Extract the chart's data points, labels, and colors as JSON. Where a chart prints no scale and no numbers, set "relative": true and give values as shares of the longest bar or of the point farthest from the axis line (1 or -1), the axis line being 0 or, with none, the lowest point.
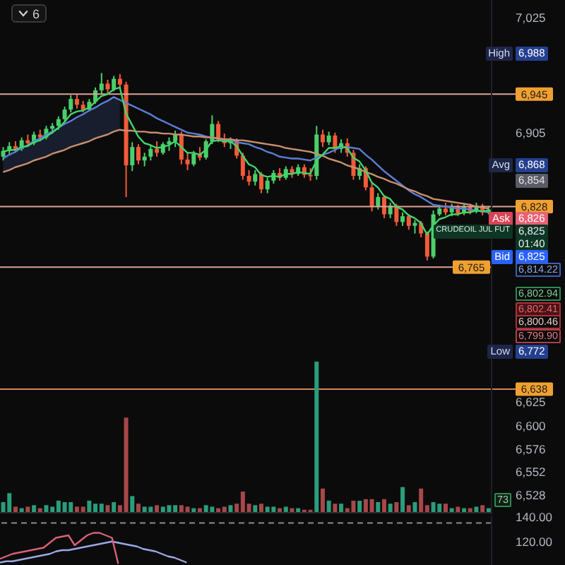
{
  "chart_data": [
    {
      "type": "candlestick",
      "categories": [
        null,
        null,
        null,
        null,
        null,
        null,
        null,
        null,
        null,
        null,
        null,
        null,
        null,
        null,
        null,
        null,
        null,
        null,
        null,
        null,
        null,
        null,
        null,
        null,
        null,
        null,
        null,
        null,
        null,
        null,
        null,
        null,
        null,
        null,
        null,
        null,
        null,
        null,
        null,
        null,
        null,
        null,
        null,
        null,
        null,
        null,
        null,
        null,
        null,
        null,
        null,
        null,
        null,
        null,
        null,
        null,
        null,
        null,
        null,
        null,
        null,
        null,
        null,
        null,
        null,
        null,
        null,
        null,
        null,
        null,
        null,
        null,
        null,
        null,
        null,
        null,
        null,
        null,
        null,
        null
      ],
      "ohlc": [
        [
          6880,
          6890,
          6876,
          6886
        ],
        [
          6886,
          6895,
          6882,
          6891
        ],
        [
          6891,
          6896,
          6884,
          6888
        ],
        [
          6888,
          6900,
          6886,
          6897
        ],
        [
          6897,
          6903,
          6890,
          6894
        ],
        [
          6894,
          6906,
          6892,
          6903
        ],
        [
          6903,
          6908,
          6896,
          6900
        ],
        [
          6900,
          6912,
          6898,
          6909
        ],
        [
          6909,
          6915,
          6904,
          6912
        ],
        [
          6912,
          6922,
          6908,
          6919
        ],
        [
          6919,
          6932,
          6916,
          6929
        ],
        [
          6929,
          6944,
          6926,
          6940
        ],
        [
          6940,
          6945,
          6930,
          6934
        ],
        [
          6934,
          6938,
          6926,
          6929
        ],
        [
          6929,
          6940,
          6927,
          6937
        ],
        [
          6937,
          6952,
          6935,
          6949
        ],
        [
          6949,
          6967,
          6945,
          6956
        ],
        [
          6956,
          6960,
          6946,
          6950
        ],
        [
          6950,
          6964,
          6948,
          6961
        ],
        [
          6961,
          6966,
          6950,
          6955
        ],
        [
          6955,
          6958,
          6838,
          6871
        ],
        [
          6871,
          6895,
          6865,
          6890
        ],
        [
          6890,
          6893,
          6872,
          6876
        ],
        [
          6876,
          6884,
          6870,
          6880
        ],
        [
          6880,
          6892,
          6876,
          6888
        ],
        [
          6888,
          6896,
          6880,
          6884
        ],
        [
          6884,
          6895,
          6882,
          6893
        ],
        [
          6893,
          6900,
          6886,
          6896
        ],
        [
          6896,
          6907,
          6890,
          6903
        ],
        [
          6903,
          6906,
          6872,
          6877
        ],
        [
          6877,
          6884,
          6866,
          6872
        ],
        [
          6872,
          6886,
          6870,
          6883
        ],
        [
          6883,
          6890,
          6876,
          6879
        ],
        [
          6879,
          6898,
          6877,
          6896
        ],
        [
          6896,
          6923,
          6893,
          6914
        ],
        [
          6914,
          6917,
          6895,
          6898
        ],
        [
          6898,
          6904,
          6890,
          6894
        ],
        [
          6894,
          6900,
          6888,
          6897
        ],
        [
          6897,
          6899,
          6878,
          6881
        ],
        [
          6881,
          6884,
          6856,
          6860
        ],
        [
          6860,
          6866,
          6850,
          6854
        ],
        [
          6854,
          6866,
          6850,
          6862
        ],
        [
          6862,
          6864,
          6842,
          6846
        ],
        [
          6846,
          6858,
          6842,
          6855
        ],
        [
          6855,
          6866,
          6852,
          6863
        ],
        [
          6863,
          6868,
          6855,
          6858
        ],
        [
          6858,
          6870,
          6856,
          6867
        ],
        [
          6867,
          6870,
          6858,
          6862
        ],
        [
          6862,
          6872,
          6860,
          6869
        ],
        [
          6869,
          6872,
          6858,
          6861
        ],
        [
          6861,
          6868,
          6855,
          6860
        ],
        [
          6860,
          6912,
          6856,
          6903
        ],
        [
          6903,
          6908,
          6890,
          6895
        ],
        [
          6895,
          6906,
          6892,
          6902
        ],
        [
          6902,
          6905,
          6884,
          6888
        ],
        [
          6888,
          6898,
          6884,
          6894
        ],
        [
          6894,
          6899,
          6880,
          6884
        ],
        [
          6884,
          6887,
          6856,
          6860
        ],
        [
          6860,
          6872,
          6856,
          6868
        ],
        [
          6868,
          6870,
          6845,
          6848
        ],
        [
          6848,
          6852,
          6823,
          6828
        ],
        [
          6828,
          6842,
          6825,
          6838
        ],
        [
          6838,
          6840,
          6816,
          6820
        ],
        [
          6820,
          6832,
          6816,
          6829
        ],
        [
          6829,
          6831,
          6808,
          6812
        ],
        [
          6812,
          6822,
          6808,
          6818
        ],
        [
          6818,
          6820,
          6804,
          6808
        ],
        [
          6808,
          6814,
          6800,
          6811
        ],
        [
          6811,
          6813,
          6796,
          6800
        ],
        [
          6800,
          6802,
          6772,
          6776
        ],
        [
          6776,
          6824,
          6774,
          6820
        ],
        [
          6820,
          6830,
          6818,
          6826
        ],
        [
          6826,
          6832,
          6819,
          6822
        ],
        [
          6822,
          6831,
          6818,
          6828
        ],
        [
          6828,
          6830,
          6818,
          6821
        ],
        [
          6821,
          6830,
          6819,
          6828
        ],
        [
          6828,
          6831,
          6820,
          6823
        ],
        [
          6823,
          6832,
          6821,
          6829
        ],
        [
          6829,
          6831,
          6819,
          6822
        ],
        [
          6822,
          6828,
          6820,
          6825
        ]
      ],
      "colors": [
        "#4ccf6a",
        "#4ccf6a",
        "#f25b3a",
        "#4ccf6a",
        "#f25b3a",
        "#4ccf6a",
        "#f25b3a",
        "#4ccf6a",
        "#4ccf6a",
        "#4ccf6a",
        "#4ccf6a",
        "#4ccf6a",
        "#f25b3a",
        "#f25b3a",
        "#4ccf6a",
        "#4ccf6a",
        "#4ccf6a",
        "#f25b3a",
        "#4ccf6a",
        "#f25b3a",
        "#f25b3a",
        "#4ccf6a",
        "#f25b3a",
        "#4ccf6a",
        "#4ccf6a",
        "#f25b3a",
        "#4ccf6a",
        "#4ccf6a",
        "#4ccf6a",
        "#f25b3a",
        "#f25b3a",
        "#4ccf6a",
        "#f25b3a",
        "#4ccf6a",
        "#4ccf6a",
        "#f25b3a",
        "#f25b3a",
        "#4ccf6a",
        "#f25b3a",
        "#f25b3a",
        "#f25b3a",
        "#4ccf6a",
        "#f25b3a",
        "#4ccf6a",
        "#4ccf6a",
        "#f25b3a",
        "#4ccf6a",
        "#f25b3a",
        "#4ccf6a",
        "#f25b3a",
        "#f25b3a",
        "#4ccf6a",
        "#f25b3a",
        "#4ccf6a",
        "#f25b3a",
        "#4ccf6a",
        "#f25b3a",
        "#f25b3a",
        "#4ccf6a",
        "#f25b3a",
        "#f25b3a",
        "#4ccf6a",
        "#f25b3a",
        "#4ccf6a",
        "#f25b3a",
        "#4ccf6a",
        "#f25b3a",
        "#4ccf6a",
        "#f25b3a",
        "#f25b3a",
        "#4ccf6a",
        "#4ccf6a",
        "#f25b3a",
        "#4ccf6a",
        "#f25b3a",
        "#4ccf6a",
        "#f25b3a",
        "#4ccf6a",
        "#f25b3a",
        "#4ccf6a"
      ],
      "series": [
        {
          "type": "line",
          "color": "#5b7fd6",
          "values": [
            6878,
            6882,
            6885,
            6889,
            6892,
            6896,
            6899,
            6903,
            6906,
            6910,
            6914,
            6917,
            6921,
            6924,
            6928,
            6931,
            6935,
            6938,
            6942,
            6939,
            6936,
            6933,
            6930,
            6927,
            6924,
            6920,
            6917,
            6914,
            6911,
            6908,
            6905,
            6904,
            6903,
            6901,
            6900,
            6899,
            6898,
            6897,
            6895,
            6894,
            6893,
            6890,
            6888,
            6885,
            6883,
            6880,
            6879,
            6878,
            6878,
            6877,
            6876,
            6879,
            6882,
            6884,
            6887,
            6890,
            6890,
            6889,
            6888,
            6882,
            6877,
            6871,
            6865,
            6860,
            6855,
            6850,
            6845,
            6841,
            6838,
            6834,
            6830,
            6829,
            6828,
            6827,
            6826,
            6826,
            6825,
            6824,
            6823,
            6822
          ],
          "lower": [
            6864,
            6866,
            6869,
            6871,
            6873,
            6876,
            6878,
            6880,
            6883,
            6885,
            6887,
            6890,
            6892,
            6894,
            6896,
            6899,
            6901,
            6903,
            6906,
            6908,
            null,
            null,
            null,
            null,
            null,
            null,
            null,
            null,
            null,
            null,
            null,
            null,
            null,
            null,
            null,
            null,
            null,
            null,
            null,
            null,
            null,
            null,
            null,
            null,
            null,
            null,
            null,
            null,
            null,
            null,
            null,
            null,
            null,
            null,
            null,
            null,
            null,
            null,
            null,
            null,
            null,
            null,
            null,
            null,
            null,
            null,
            null,
            null,
            null,
            null,
            null,
            null,
            null,
            null,
            null,
            null,
            null,
            null,
            null,
            null
          ],
          "upper": [
            6878,
            6882,
            6885,
            6889,
            6892,
            6896,
            6899,
            6903,
            6906,
            6910,
            6914,
            6917,
            6921,
            6924,
            6928,
            6931,
            6935,
            6938,
            6942,
            6939,
            null,
            null,
            null,
            null,
            null,
            null,
            null,
            null,
            null,
            null,
            null,
            null,
            null,
            null,
            null,
            null,
            null,
            null,
            null,
            null,
            null,
            null,
            null,
            null,
            null,
            null,
            null,
            null,
            null,
            null,
            null,
            null,
            null,
            null,
            null,
            null,
            null,
            null,
            null,
            null,
            null,
            null,
            null,
            null,
            null,
            null,
            null,
            null,
            null,
            null,
            null,
            null,
            null,
            null,
            null,
            null,
            null,
            null,
            null,
            null
          ]
        },
        {
          "type": "line",
          "color": "#c9906e",
          "values": [
            6864,
            6866,
            6869,
            6871,
            6873,
            6876,
            6878,
            6880,
            6883,
            6885,
            6887,
            6890,
            6892,
            6894,
            6896,
            6899,
            6901,
            6903,
            6906,
            6908,
            6907,
            6907,
            6906,
            6906,
            6905,
            6905,
            6904,
            6904,
            6903,
            6903,
            6902,
            6901,
            6901,
            6900,
            6900,
            6899,
            6898,
            6898,
            6897,
            6897,
            6896,
            6895,
            6894,
            6893,
            6892,
            6891,
            6889,
            6888,
            6887,
            6886,
            6885,
            6883,
            6881,
            6878,
            6876,
            6874,
            6871,
            6869,
            6867,
            6864,
            6862,
            6859,
            6857,
            6854,
            6852,
            6849,
            6846,
            6844,
            6841,
            6839,
            6836,
            6835,
            6834,
            6833,
            6832,
            6831,
            6830,
            6828,
            6827,
            6826
          ]
        },
        {
          "type": "line",
          "color": "#3fd66b",
          "values": [
            6885,
            6887,
            6887,
            6890,
            6891,
            6895,
            6897,
            6901,
            6905,
            6910,
            6916,
            6924,
            6927,
            6928,
            6931,
            6937,
            6943,
            6945,
            6950,
            6952,
            6925,
            6913,
            6901,
            6894,
            6892,
            6889,
            6890,
            6892,
            6896,
            6890,
            6884,
            6884,
            6882,
            6887,
            6896,
            6897,
            6896,
            6896,
            6891,
            6881,
            6872,
            6869,
            6861,
            6859,
            6860,
            6859,
            6862,
            6862,
            6864,
            6863,
            6862,
            6876,
            6882,
            6889,
            6889,
            6891,
            6889,
            6879,
            6875,
            6866,
            6853,
            6848,
            6839,
            6836,
            6828,
            6825,
            6819,
            6816,
            6811,
            6799,
            6808,
            6815,
            6817,
            6820,
            6820,
            6822,
            6822,
            6824,
            6823,
            6824
          ]
        }
      ],
      "ylim": [
        6508,
        7043
      ],
      "yticks": [
        {
          "value": 7025,
          "label": "7,025"
        },
        {
          "value": 6905,
          "label": "6,905"
        },
        {
          "value": 6625,
          "label": "6,625"
        },
        {
          "value": 6600,
          "label": "6,600"
        },
        {
          "value": 6576,
          "label": "6,576"
        },
        {
          "value": 6552,
          "label": "6,552"
        },
        {
          "value": 6528,
          "label": "6,528"
        }
      ],
      "ref_lines": [
        {
          "axis": "y",
          "value": 6945,
          "label": "6,945",
          "color": "#dca497"
        },
        {
          "axis": "y",
          "value": 6828,
          "label": "6,828",
          "color": "#dca497"
        },
        {
          "axis": "y",
          "value": 6765,
          "label": "6,765",
          "color": "#dca497"
        },
        {
          "axis": "y",
          "value": 6638,
          "label": "6,638",
          "color": "#d08a5c"
        }
      ],
      "annotations": [
        "6",
        "High",
        "6,988",
        "Avg",
        "6,868",
        "6,854",
        "Ask",
        "6,826",
        "CRUDEOIL JUL FUT",
        "6,825",
        "01:40",
        "Bid",
        "6,825",
        "6,814.22",
        "6,802.94",
        "6,802.41",
        "6,800.46",
        "6,799.90",
        "Low",
        "6,772"
      ]
    },
    {
      "type": "bar",
      "relative": true,
      "categories": [
        null,
        null,
        null,
        null,
        null,
        null,
        null,
        null,
        null,
        null,
        null,
        null,
        null,
        null,
        null,
        null,
        null,
        null,
        null,
        null,
        null,
        null,
        null,
        null,
        null,
        null,
        null,
        null,
        null,
        null,
        null,
        null,
        null,
        null,
        null,
        null,
        null,
        null,
        null,
        null,
        null,
        null,
        null,
        null,
        null,
        null,
        null,
        null,
        null,
        null,
        null,
        null,
        null,
        null,
        null,
        null,
        null,
        null,
        null,
        null,
        null,
        null,
        null,
        null,
        null,
        null,
        null,
        null,
        null,
        null,
        null,
        null,
        null,
        null,
        null,
        null,
        null,
        null,
        null,
        null
      ],
      "values": [
        0.07,
        0.13,
        0.04,
        0.03,
        0.04,
        0.05,
        0.03,
        0.05,
        0.04,
        0.08,
        0.07,
        0.07,
        0.04,
        0.04,
        0.08,
        0.06,
        0.06,
        0.05,
        0.07,
        0.05,
        0.63,
        0.11,
        0.06,
        0.04,
        0.04,
        0.05,
        0.04,
        0.05,
        0.05,
        0.05,
        0.04,
        0.03,
        0.03,
        0.05,
        0.04,
        0.03,
        0.04,
        0.05,
        0.06,
        0.14,
        0.06,
        0.05,
        0.06,
        0.04,
        0.04,
        0.03,
        0.04,
        0.03,
        0.03,
        0.02,
        0.02,
        1,
        0.16,
        0.08,
        0.06,
        0.06,
        0.03,
        0.08,
        0.08,
        0.09,
        0.09,
        0.07,
        0.09,
        0.06,
        0.07,
        0.17,
        0.05,
        0.07,
        0.16,
        0.05,
        0.07,
        0.06,
        0.06,
        0.03,
        0.04,
        0.03,
        0.03,
        0.04,
        0.05,
        0.03
      ],
      "colors": [
        "#2a9d7c",
        "#2a9d7c",
        "#a7474a",
        "#2a9d7c",
        "#a7474a",
        "#2a9d7c",
        "#a7474a",
        "#2a9d7c",
        "#2a9d7c",
        "#2a9d7c",
        "#2a9d7c",
        "#2a9d7c",
        "#a7474a",
        "#a7474a",
        "#2a9d7c",
        "#2a9d7c",
        "#2a9d7c",
        "#a7474a",
        "#2a9d7c",
        "#a7474a",
        "#a7474a",
        "#2a9d7c",
        "#a7474a",
        "#2a9d7c",
        "#2a9d7c",
        "#a7474a",
        "#2a9d7c",
        "#2a9d7c",
        "#2a9d7c",
        "#a7474a",
        "#a7474a",
        "#2a9d7c",
        "#a7474a",
        "#2a9d7c",
        "#2a9d7c",
        "#a7474a",
        "#a7474a",
        "#2a9d7c",
        "#a7474a",
        "#a7474a",
        "#a7474a",
        "#2a9d7c",
        "#a7474a",
        "#2a9d7c",
        "#2a9d7c",
        "#a7474a",
        "#2a9d7c",
        "#a7474a",
        "#2a9d7c",
        "#a7474a",
        "#a7474a",
        "#2a9d7c",
        "#a7474a",
        "#2a9d7c",
        "#a7474a",
        "#2a9d7c",
        "#a7474a",
        "#a7474a",
        "#2a9d7c",
        "#a7474a",
        "#a7474a",
        "#2a9d7c",
        "#a7474a",
        "#2a9d7c",
        "#a7474a",
        "#2a9d7c",
        "#a7474a",
        "#2a9d7c",
        "#a7474a",
        "#a7474a",
        "#2a9d7c",
        "#2a9d7c",
        "#a7474a",
        "#2a9d7c",
        "#a7474a",
        "#2a9d7c",
        "#a7474a",
        "#2a9d7c",
        "#a7474a",
        "#2a9d7c"
      ],
      "annotations": [
        "73"
      ]
    },
    {
      "type": "line",
      "categories": [
        null,
        null,
        null,
        null,
        null,
        null,
        null,
        null,
        null,
        null,
        null,
        null,
        null,
        null,
        null,
        null,
        null,
        null,
        null,
        null,
        null,
        null,
        null,
        null,
        null,
        null,
        null,
        null,
        null,
        null,
        null,
        null,
        null,
        null,
        null,
        null,
        null,
        null,
        null,
        null,
        null,
        null,
        null,
        null,
        null,
        null,
        null,
        null,
        null,
        null,
        null,
        null,
        null,
        null,
        null,
        null,
        null,
        null,
        null,
        null,
        null,
        null,
        null,
        null,
        null,
        null,
        null,
        null,
        null,
        null,
        null,
        null,
        null,
        null,
        null,
        null,
        null,
        null,
        null,
        null
      ],
      "series": [
        {
          "color": "#9aa8e6",
          "values": [
            103,
            104,
            104,
            105,
            106,
            107,
            108,
            109,
            110,
            112,
            113,
            113,
            114,
            115,
            116,
            117,
            118,
            119,
            120,
            119,
            118,
            117,
            116,
            114,
            113,
            112,
            110,
            108,
            107,
            105,
            103,
            null,
            null,
            null,
            null,
            null,
            null,
            null,
            null,
            null,
            null,
            null,
            null,
            null,
            null,
            null,
            null,
            null,
            null,
            null,
            null,
            null,
            null,
            null,
            null,
            null,
            null,
            null,
            null,
            null,
            null,
            null,
            null,
            null,
            null,
            null,
            null,
            null,
            null,
            null,
            null,
            null,
            null,
            null,
            null,
            null,
            null,
            null,
            null,
            null
          ]
        },
        {
          "color": "#d9607a",
          "values": [
            106,
            108,
            110,
            111,
            112,
            113,
            114,
            115,
            119,
            123,
            124,
            125,
            117,
            121,
            125,
            127,
            127,
            125,
            123,
            102,
            null,
            null,
            null,
            null,
            null,
            null,
            null,
            null,
            null,
            null,
            null,
            null,
            null,
            null,
            null,
            null,
            null,
            null,
            null,
            null,
            null,
            null,
            null,
            null,
            null,
            null,
            null,
            null,
            null,
            null,
            null,
            null,
            null,
            null,
            null,
            null,
            null,
            null,
            null,
            null,
            null,
            null,
            null,
            null,
            null,
            null,
            null,
            null,
            null,
            null,
            null,
            null,
            null,
            null,
            null,
            null,
            null,
            null,
            null,
            null
          ]
        }
      ],
      "ylim": [
        101,
        141
      ],
      "yticks": [
        {
          "value": 140,
          "label": "140.00"
        },
        {
          "value": 120,
          "label": "120.00"
        }
      ],
      "ref_lines": [
        {
          "axis": "y",
          "value": 135,
          "color": "#8c8c8c",
          "line_style": "dashed"
        }
      ]
    }
  ]
}
